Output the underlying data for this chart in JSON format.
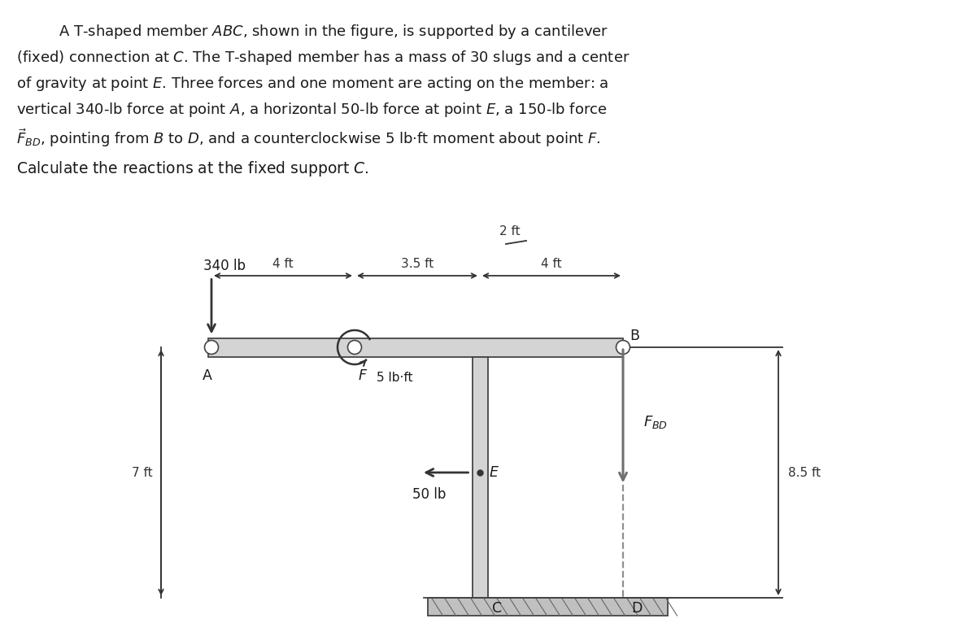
{
  "bg_color": "#ffffff",
  "text_color": "#1a1a1a",
  "label_340": "340 lb",
  "label_2ft": "2 ft",
  "label_4ft_left": "4 ft",
  "label_35ft": "3.5 ft",
  "label_4ft_right": "4 ft",
  "label_7ft": "7 ft",
  "label_5lbft": "5 lb·ft",
  "label_50lb": "50 lb",
  "label_85ft": "8.5 ft",
  "label_A": "A",
  "label_B": "B",
  "label_C": "C",
  "label_D": "D",
  "label_E": "E",
  "label_F": "F",
  "member_face_color": "#d4d4d4",
  "member_edge_color": "#444444",
  "base_face_color": "#c0c0c0",
  "base_edge_color": "#444444",
  "arrow_color": "#333333",
  "fbd_arrow_color": "#707070",
  "dim_color": "#333333",
  "circle_face": "#ffffff",
  "circle_edge": "#444444",
  "title_lines": [
    "   A T-shaped member ABC, shown in the figure, is supported by a cantilever",
    "(fixed) connection at C. The T-shaped member has a mass of 30 slugs and a center",
    "of gravity at point E. Three forces and one moment are acting on the member: a",
    "vertical 340-lb force at point A, a horizontal 50-lb force at point E, a 150-lb force",
    "FBD, pointing from B to D, and a counterclockwise 5 lb·ft moment about point F."
  ],
  "subtitle": "Calculate the reactions at the fixed support C."
}
